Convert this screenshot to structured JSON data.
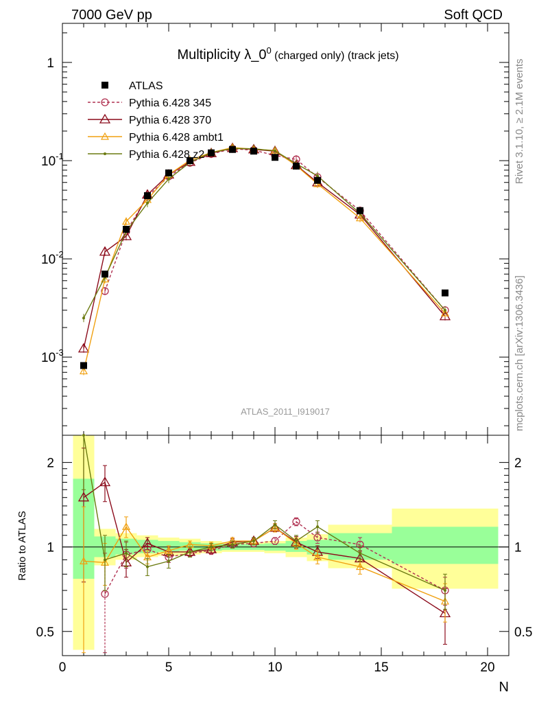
{
  "header": {
    "left": "7000 GeV pp",
    "right": "Soft QCD"
  },
  "side_labels": {
    "top": "Rivet 3.1.10, ≥ 2.1M events",
    "bottom": "mcplots.cern.ch [arXiv:1306.3436]"
  },
  "chart_data": {
    "type": "line",
    "title_main": "Multiplicity λ_0",
    "title_sup": "0",
    "title_sub": " (charged only) (track jets)",
    "watermark": "ATLAS_2011_I919017",
    "xlabel": "N",
    "ylabel_ratio": "Ratio to ATLAS",
    "xlim": [
      0,
      21
    ],
    "ylim": [
      0.00016,
      2.5
    ],
    "yscale": "log",
    "ratio_ylim": [
      0.41,
      2.5
    ],
    "ratio_yscale": "log",
    "x_ticks": [
      "0",
      "5",
      "10",
      "15",
      "20"
    ],
    "y_ticks": [
      "10",
      "10",
      "10",
      "1"
    ],
    "y_tick_exps": [
      "-3",
      "-2",
      "-1",
      ""
    ],
    "ratio_ticks": [
      "0.5",
      "1",
      "2"
    ],
    "legend_position": "top-left",
    "data": {
      "name": "ATLAS",
      "color": "#000000",
      "x": [
        1,
        2,
        3,
        4,
        5,
        6,
        7,
        8,
        9,
        10,
        11,
        12,
        14,
        18
      ],
      "y": [
        0.00082,
        0.007,
        0.02,
        0.044,
        0.075,
        0.1,
        0.12,
        0.13,
        0.125,
        0.108,
        0.088,
        0.063,
        0.031,
        0.0045
      ]
    },
    "bands": [
      {
        "x0": 0.5,
        "x1": 1.5,
        "yellow": [
          0.43,
          2.5
        ],
        "green": [
          0.77,
          1.75
        ]
      },
      {
        "x0": 1.5,
        "x1": 2.5,
        "yellow": [
          0.86,
          1.16
        ],
        "green": [
          0.92,
          1.09
        ]
      },
      {
        "x0": 2.5,
        "x1": 3.5,
        "yellow": [
          0.9,
          1.12
        ],
        "green": [
          0.94,
          1.07
        ]
      },
      {
        "x0": 3.5,
        "x1": 4.5,
        "yellow": [
          0.92,
          1.1
        ],
        "green": [
          0.95,
          1.06
        ]
      },
      {
        "x0": 4.5,
        "x1": 5.5,
        "yellow": [
          0.93,
          1.08
        ],
        "green": [
          0.96,
          1.05
        ]
      },
      {
        "x0": 5.5,
        "x1": 6.5,
        "yellow": [
          0.94,
          1.07
        ],
        "green": [
          0.97,
          1.04
        ]
      },
      {
        "x0": 6.5,
        "x1": 7.5,
        "yellow": [
          0.95,
          1.05
        ],
        "green": [
          0.97,
          1.03
        ]
      },
      {
        "x0": 7.5,
        "x1": 8.5,
        "yellow": [
          0.96,
          1.04
        ],
        "green": [
          0.975,
          1.025
        ]
      },
      {
        "x0": 8.5,
        "x1": 9.5,
        "yellow": [
          0.96,
          1.04
        ],
        "green": [
          0.975,
          1.025
        ]
      },
      {
        "x0": 9.5,
        "x1": 10.5,
        "yellow": [
          0.95,
          1.05
        ],
        "green": [
          0.97,
          1.03
        ]
      },
      {
        "x0": 10.5,
        "x1": 11.5,
        "yellow": [
          0.92,
          1.08
        ],
        "green": [
          0.96,
          1.05
        ]
      },
      {
        "x0": 11.5,
        "x1": 12.5,
        "yellow": [
          0.89,
          1.11
        ],
        "green": [
          0.94,
          1.06
        ]
      },
      {
        "x0": 12.5,
        "x1": 15.5,
        "yellow": [
          0.84,
          1.2
        ],
        "green": [
          0.9,
          1.12
        ]
      },
      {
        "x0": 15.5,
        "x1": 20.5,
        "yellow": [
          0.71,
          1.37
        ],
        "green": [
          0.87,
          1.18
        ]
      }
    ],
    "series": [
      {
        "name": "Pythia 6.428 345",
        "color": "#b03050",
        "dash": "4,3",
        "marker": "circle",
        "x": [
          2,
          3,
          4,
          5,
          6,
          7,
          8,
          9,
          10,
          11,
          12,
          14,
          18
        ],
        "y": [
          0.0047,
          0.019,
          0.043,
          0.069,
          0.095,
          0.117,
          0.132,
          0.128,
          0.113,
          0.103,
          0.068,
          0.031,
          0.003
        ],
        "ratio": [
          0.68,
          0.94,
          0.98,
          0.92,
          0.95,
          0.97,
          1.02,
          1.03,
          1.05,
          1.23,
          1.08,
          1.02,
          0.7
        ],
        "ratio_err": [
          0.27,
          0.1,
          0.05,
          0.04,
          0.03,
          0.03,
          0.03,
          0.03,
          0.03,
          0.04,
          0.05,
          0.06,
          0.08
        ]
      },
      {
        "name": "Pythia 6.428 370",
        "color": "#8b0a1a",
        "dash": "",
        "marker": "triangle",
        "x": [
          1,
          2,
          3,
          4,
          5,
          6,
          7,
          8,
          9,
          10,
          11,
          12,
          14,
          18
        ],
        "y": [
          0.00122,
          0.0118,
          0.017,
          0.045,
          0.072,
          0.097,
          0.119,
          0.134,
          0.13,
          0.125,
          0.09,
          0.06,
          0.0282,
          0.0026
        ],
        "ratio": [
          1.5,
          1.7,
          0.88,
          1.03,
          0.96,
          0.96,
          0.98,
          1.04,
          1.05,
          1.17,
          1.04,
          0.96,
          0.91,
          0.58
        ],
        "ratio_err": [
          0.75,
          0.25,
          0.1,
          0.05,
          0.04,
          0.03,
          0.03,
          0.03,
          0.03,
          0.04,
          0.05,
          0.05,
          0.06,
          0.13
        ]
      },
      {
        "name": "Pythia 6.428 ambt1",
        "color": "#f0a010",
        "dash": "",
        "marker": "triangle-small",
        "x": [
          1,
          2,
          3,
          4,
          5,
          6,
          7,
          8,
          9,
          10,
          11,
          12,
          14,
          18
        ],
        "y": [
          0.00072,
          0.0062,
          0.024,
          0.04,
          0.072,
          0.101,
          0.121,
          0.136,
          0.131,
          0.127,
          0.089,
          0.058,
          0.026,
          0.0028
        ],
        "ratio": [
          0.89,
          0.88,
          1.18,
          0.92,
          0.97,
          1.02,
          1.01,
          1.05,
          1.05,
          1.17,
          1.03,
          0.92,
          0.85,
          0.64
        ],
        "ratio_err": [
          0.5,
          0.15,
          0.1,
          0.05,
          0.04,
          0.03,
          0.03,
          0.03,
          0.03,
          0.04,
          0.05,
          0.05,
          0.05,
          0.1
        ]
      },
      {
        "name": "Pythia 6.428 z2",
        "color": "#6b7a10",
        "dash": "",
        "marker": "dot",
        "x": [
          1,
          2,
          3,
          4,
          5,
          6,
          7,
          8,
          9,
          10,
          11,
          12,
          14,
          18
        ],
        "y": [
          0.0025,
          0.0065,
          0.019,
          0.037,
          0.065,
          0.096,
          0.121,
          0.133,
          0.132,
          0.126,
          0.093,
          0.07,
          0.029,
          0.003
        ],
        "ratio": [
          2.5,
          0.9,
          0.95,
          0.85,
          0.89,
          0.96,
          1.0,
          1.02,
          1.05,
          1.2,
          1.05,
          1.18,
          0.95,
          0.7
        ],
        "ratio_err": [
          0.9,
          0.2,
          0.1,
          0.06,
          0.05,
          0.04,
          0.03,
          0.03,
          0.03,
          0.04,
          0.05,
          0.06,
          0.06,
          0.1
        ]
      }
    ]
  }
}
